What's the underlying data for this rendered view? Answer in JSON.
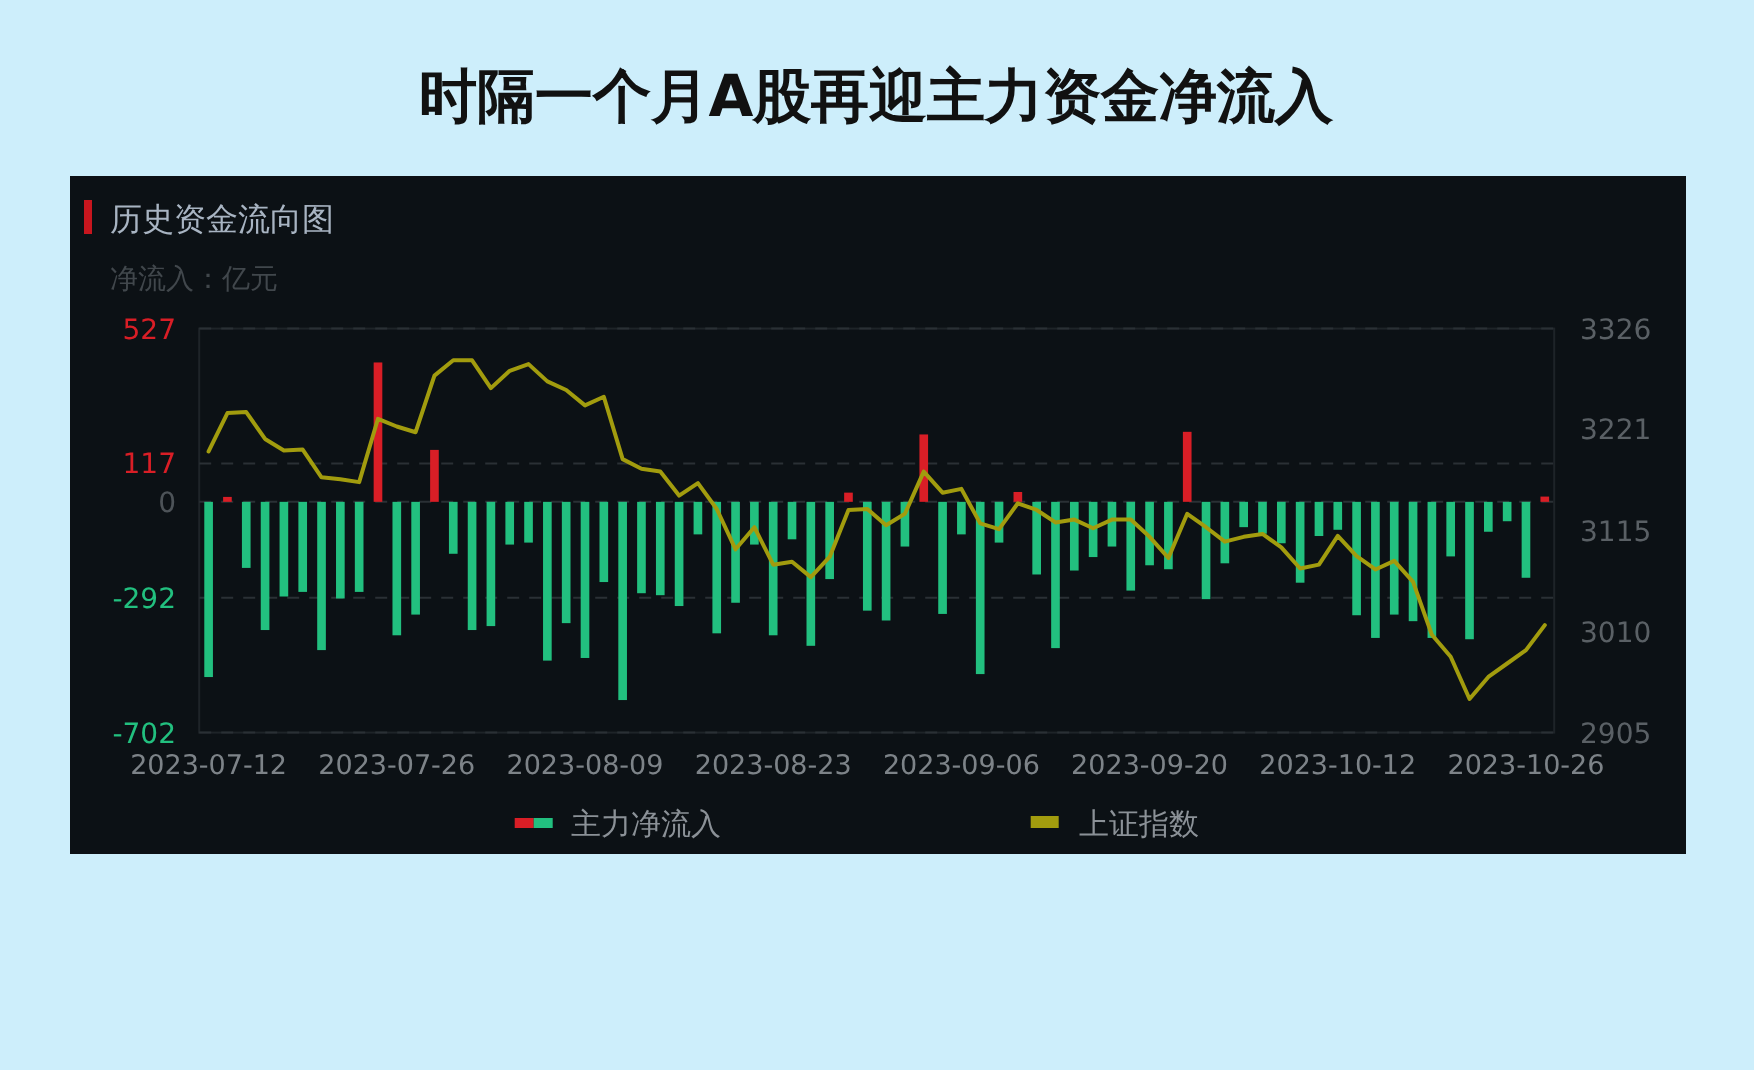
{
  "chart_data": {
    "type": "bar",
    "title": "时隔一个月A股再迎主力资金净流入",
    "subtitle": "历史资金流向图",
    "ylabel": "净流入：亿元",
    "categories": [
      "2023-07-12",
      null,
      null,
      null,
      null,
      null,
      null,
      null,
      null,
      null,
      "2023-07-26",
      null,
      null,
      null,
      null,
      null,
      null,
      null,
      null,
      null,
      "2023-08-09",
      null,
      null,
      null,
      null,
      null,
      null,
      null,
      null,
      null,
      "2023-08-23",
      null,
      null,
      null,
      null,
      null,
      null,
      null,
      null,
      null,
      "2023-09-06",
      null,
      null,
      null,
      null,
      null,
      null,
      null,
      null,
      null,
      "2023-09-20",
      null,
      null,
      null,
      null,
      null,
      null,
      null,
      null,
      null,
      "2023-10-12",
      null,
      null,
      null,
      null,
      null,
      null,
      null,
      null,
      null,
      "2023-10-26",
      null
    ],
    "series": [
      {
        "name": "主力净流入",
        "values": [
          -533,
          15,
          -201,
          -390,
          -288,
          -274,
          -451,
          -294,
          -274,
          424,
          -406,
          -343,
          158,
          -158,
          -390,
          -378,
          -130,
          -124,
          -483,
          -369,
          -475,
          -244,
          -603,
          -278,
          -284,
          -317,
          -99,
          -400,
          -307,
          -130,
          -406,
          -114,
          -438,
          -235,
          28,
          -331,
          -361,
          -136,
          205,
          -341,
          -99,
          -524,
          -124,
          30,
          -221,
          -445,
          -209,
          -168,
          -136,
          -270,
          -193,
          -205,
          213,
          -296,
          -187,
          -77,
          -97,
          -126,
          -246,
          -104,
          -85,
          -345,
          -414,
          -343,
          -363,
          -414,
          -166,
          -418,
          -91,
          -59,
          -231,
          16
        ],
        "colors": [
          "#22c07f",
          "#d91e26",
          "#22c07f",
          "#22c07f",
          "#22c07f",
          "#22c07f",
          "#22c07f",
          "#22c07f",
          "#22c07f",
          "#d91e26",
          "#22c07f",
          "#22c07f",
          "#d91e26",
          "#22c07f",
          "#22c07f",
          "#22c07f",
          "#22c07f",
          "#22c07f",
          "#22c07f",
          "#22c07f",
          "#22c07f",
          "#22c07f",
          "#22c07f",
          "#22c07f",
          "#22c07f",
          "#22c07f",
          "#22c07f",
          "#22c07f",
          "#22c07f",
          "#22c07f",
          "#22c07f",
          "#22c07f",
          "#22c07f",
          "#22c07f",
          "#d91e26",
          "#22c07f",
          "#22c07f",
          "#22c07f",
          "#d91e26",
          "#22c07f",
          "#22c07f",
          "#22c07f",
          "#22c07f",
          "#d91e26",
          "#22c07f",
          "#22c07f",
          "#22c07f",
          "#22c07f",
          "#22c07f",
          "#22c07f",
          "#22c07f",
          "#22c07f",
          "#d91e26",
          "#22c07f",
          "#22c07f",
          "#22c07f",
          "#22c07f",
          "#22c07f",
          "#22c07f",
          "#22c07f",
          "#22c07f",
          "#22c07f",
          "#22c07f",
          "#22c07f",
          "#22c07f",
          "#22c07f",
          "#22c07f",
          "#22c07f",
          "#22c07f",
          "#22c07f",
          "#22c07f",
          "#d91e26"
        ]
      },
      {
        "name": "上证指数",
        "type": "line",
        "axis": "y2",
        "color": "#a29c0e",
        "values": [
          3198,
          3238,
          3239,
          3211,
          3199,
          3200,
          3171,
          3169,
          3166,
          3232,
          3224,
          3218,
          3277,
          3293,
          3293,
          3264,
          3282,
          3289,
          3271,
          3262,
          3246,
          3255,
          3190,
          3180,
          3177,
          3152,
          3165,
          3138,
          3096,
          3119,
          3080,
          3083,
          3067,
          3088,
          3137,
          3138,
          3121,
          3133,
          3177,
          3155,
          3159,
          3123,
          3117,
          3144,
          3137,
          3124,
          3127,
          3118,
          3127,
          3127,
          3109,
          3087,
          3133,
          3119,
          3104,
          3109,
          3112,
          3098,
          3076,
          3080,
          3110,
          3089,
          3075,
          3084,
          3062,
          3007,
          2984,
          2940,
          2963,
          2977,
          2991,
          3017
        ]
      }
    ],
    "ylim": [
      -702,
      527
    ],
    "yticks": [
      -702,
      -292,
      0,
      117,
      527
    ],
    "y2lim": [
      2905,
      3326
    ],
    "y2ticks": [
      2905,
      3010,
      3115,
      3221,
      3326
    ],
    "grid": "y",
    "legend": "bottom"
  }
}
